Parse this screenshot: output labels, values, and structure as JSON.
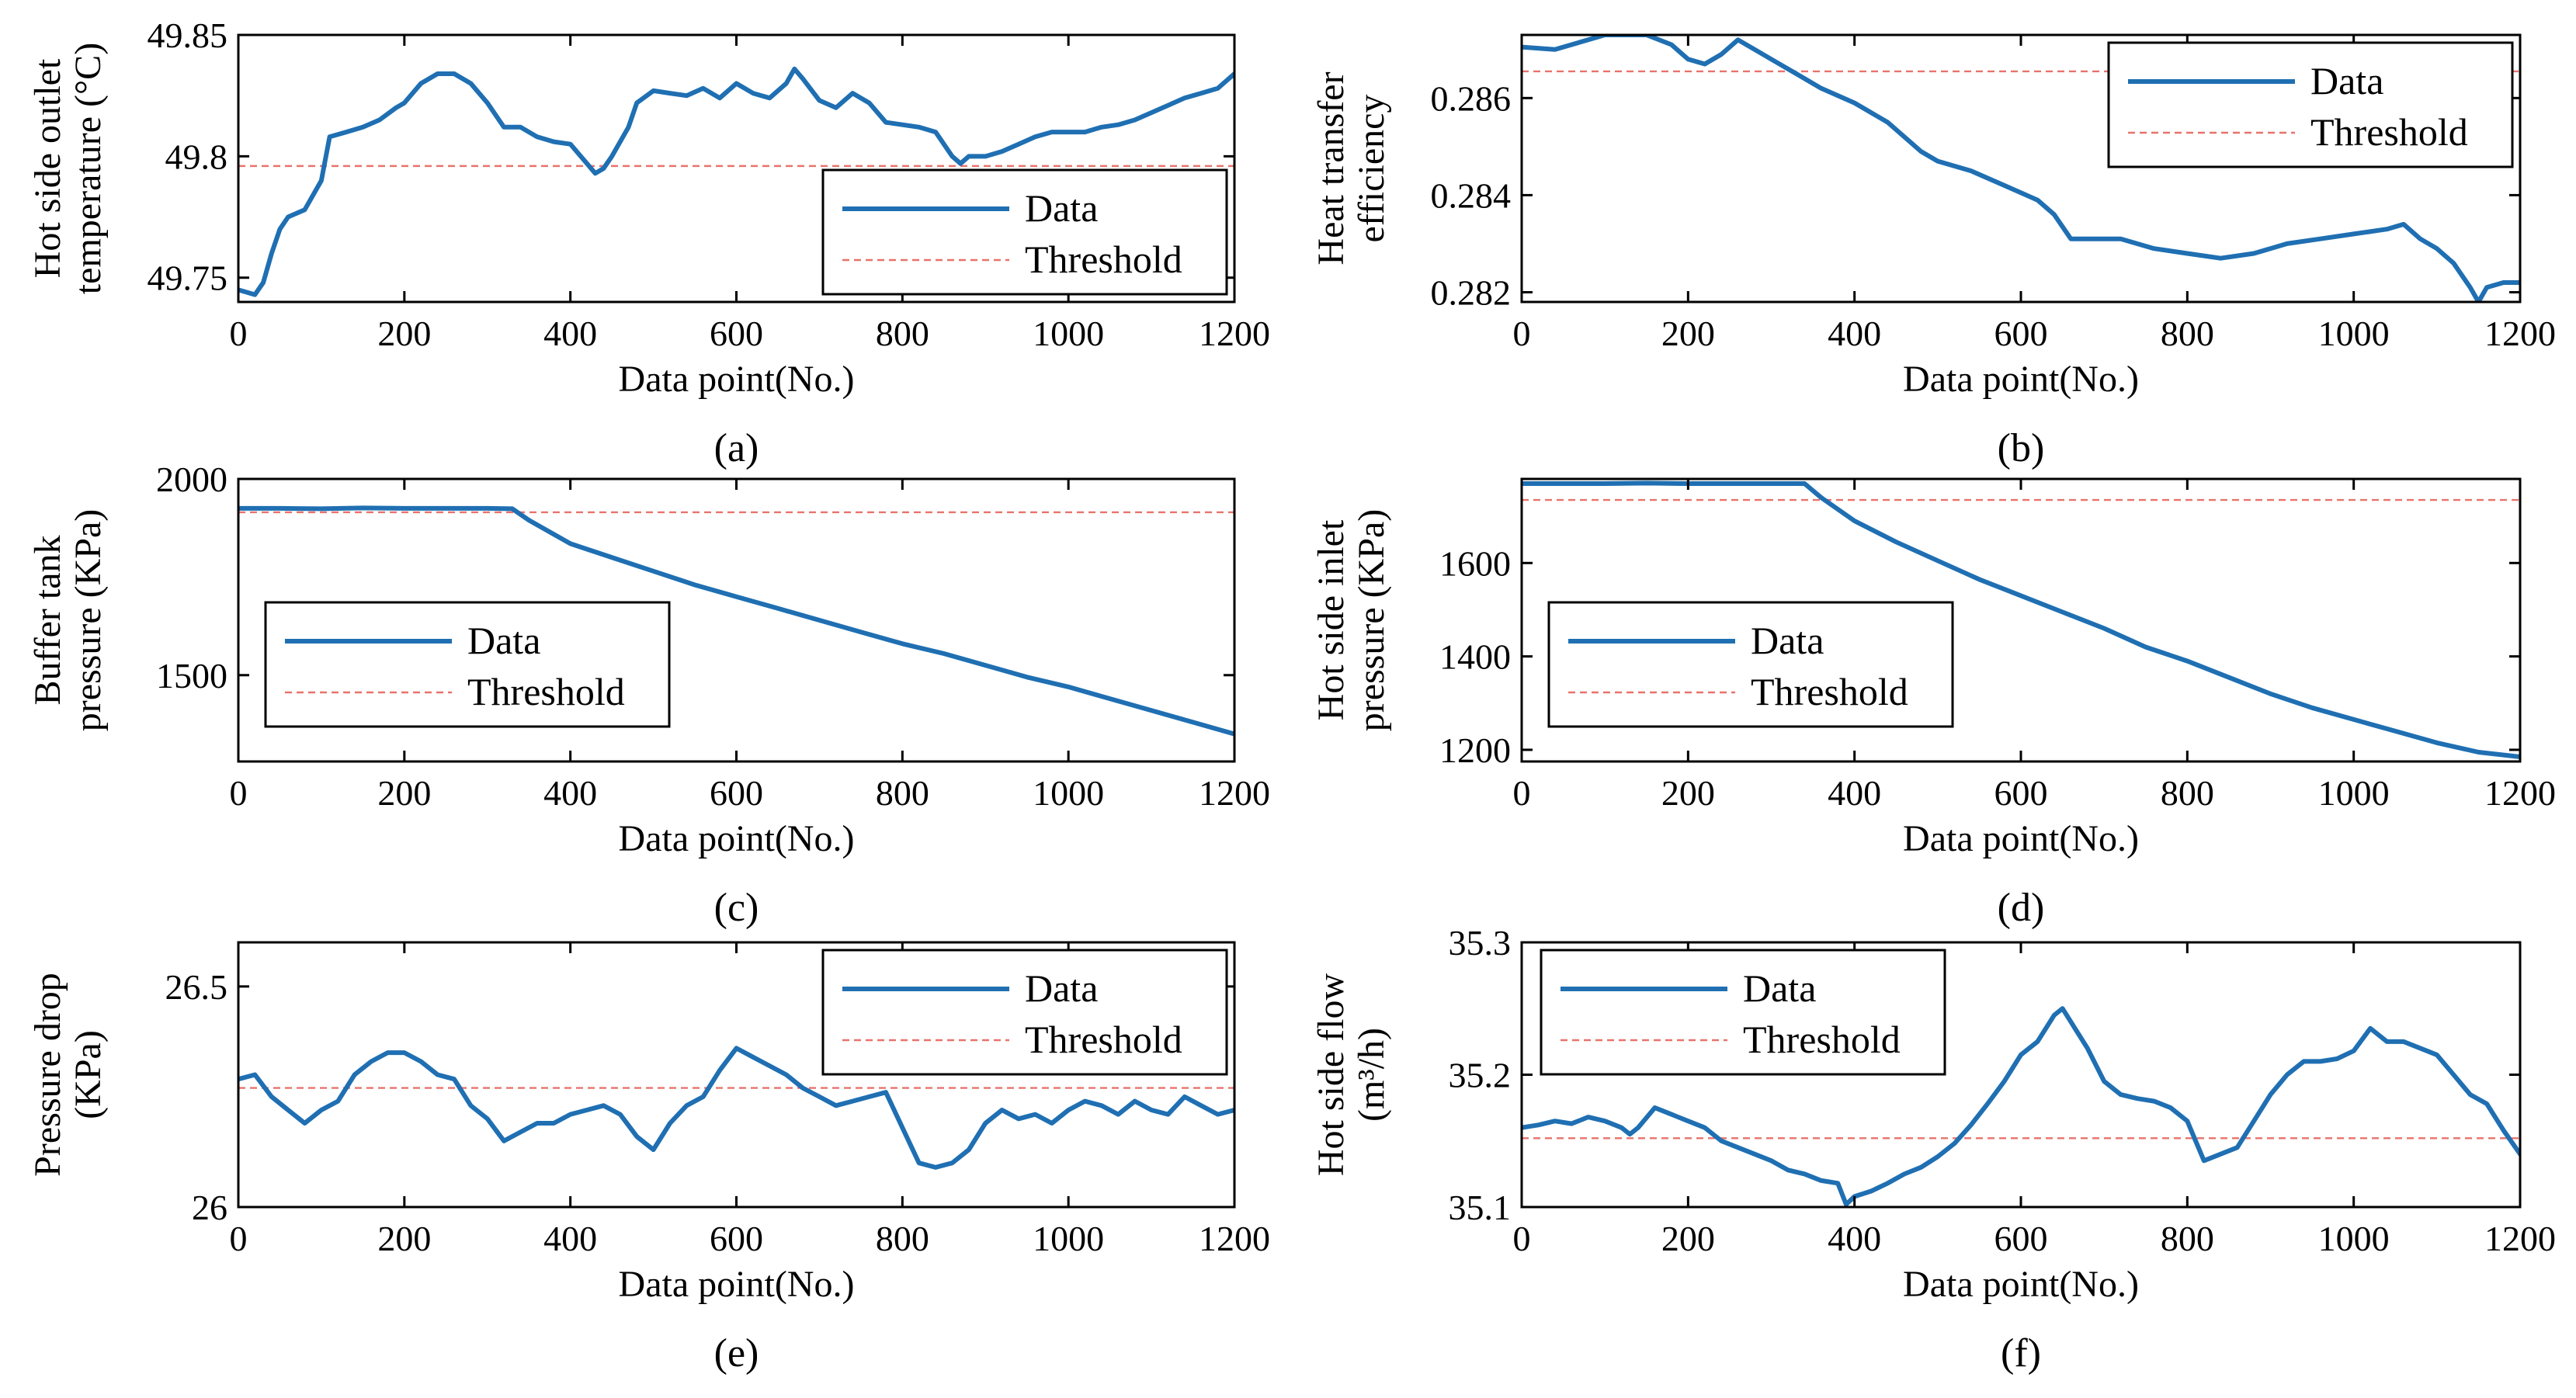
{
  "colors": {
    "data": "#1f6fb2",
    "threshold": "#e8736c",
    "axis": "#000000"
  },
  "chart_data": [
    {
      "type": "line",
      "panel_label": "(a)",
      "xlabel": "Data point(No.)",
      "ylabel_lines": [
        "Hot side outlet",
        "temperature (°C)"
      ],
      "xlim": [
        0,
        1200
      ],
      "ylim": [
        49.74,
        49.85
      ],
      "xticks": [
        0,
        200,
        400,
        600,
        800,
        1000,
        1200
      ],
      "xtick_labels": [
        "0",
        "200",
        "400",
        "600",
        "800",
        "1000",
        "1200"
      ],
      "yticks": [
        49.75,
        49.8,
        49.85
      ],
      "ytick_labels": [
        "49.75",
        "49.8",
        "49.85"
      ],
      "legend_position": "lower-right",
      "threshold": 49.796,
      "series": [
        {
          "name": "Data",
          "x": [
            0,
            20,
            30,
            40,
            50,
            60,
            80,
            100,
            110,
            130,
            150,
            170,
            190,
            200,
            220,
            240,
            260,
            280,
            300,
            320,
            340,
            360,
            380,
            400,
            420,
            430,
            440,
            450,
            470,
            480,
            500,
            520,
            540,
            560,
            580,
            600,
            620,
            640,
            660,
            670,
            680,
            700,
            720,
            740,
            760,
            780,
            800,
            820,
            840,
            860,
            870,
            880,
            900,
            920,
            940,
            960,
            980,
            1000,
            1020,
            1040,
            1060,
            1080,
            1100,
            1120,
            1140,
            1160,
            1180,
            1200
          ],
          "y": [
            49.745,
            49.743,
            49.748,
            49.76,
            49.77,
            49.775,
            49.778,
            49.79,
            49.808,
            49.81,
            49.812,
            49.815,
            49.82,
            49.822,
            49.83,
            49.834,
            49.834,
            49.83,
            49.822,
            49.812,
            49.812,
            49.808,
            49.806,
            49.805,
            49.797,
            49.793,
            49.795,
            49.8,
            49.812,
            49.822,
            49.827,
            49.826,
            49.825,
            49.828,
            49.824,
            49.83,
            49.826,
            49.824,
            49.83,
            49.836,
            49.832,
            49.823,
            49.82,
            49.826,
            49.822,
            49.814,
            49.813,
            49.812,
            49.81,
            49.8,
            49.797,
            49.8,
            49.8,
            49.802,
            49.805,
            49.808,
            49.81,
            49.81,
            49.81,
            49.812,
            49.813,
            49.815,
            49.818,
            49.821,
            49.824,
            49.826,
            49.828,
            49.834
          ]
        },
        {
          "name": "Threshold"
        }
      ]
    },
    {
      "type": "line",
      "panel_label": "(b)",
      "xlabel": "Data point(No.)",
      "ylabel_lines": [
        "Heat transfer",
        "efficiency"
      ],
      "xlim": [
        0,
        1200
      ],
      "ylim": [
        0.2818,
        0.2873
      ],
      "xticks": [
        0,
        200,
        400,
        600,
        800,
        1000,
        1200
      ],
      "xtick_labels": [
        "0",
        "200",
        "400",
        "600",
        "800",
        "1000",
        "1200"
      ],
      "yticks": [
        0.282,
        0.284,
        0.286
      ],
      "ytick_labels": [
        "0.282",
        "0.284",
        "0.286"
      ],
      "legend_position": "top-right",
      "threshold": 0.28655,
      "series": [
        {
          "name": "Data",
          "x": [
            0,
            40,
            80,
            100,
            150,
            180,
            200,
            220,
            240,
            260,
            280,
            300,
            330,
            360,
            400,
            440,
            480,
            500,
            540,
            580,
            620,
            640,
            660,
            680,
            720,
            760,
            800,
            840,
            880,
            920,
            960,
            1000,
            1040,
            1060,
            1080,
            1100,
            1120,
            1140,
            1150,
            1160,
            1180,
            1200
          ],
          "y": [
            0.28705,
            0.287,
            0.2872,
            0.2873,
            0.2873,
            0.2871,
            0.2868,
            0.2867,
            0.2869,
            0.2872,
            0.287,
            0.2868,
            0.2865,
            0.2862,
            0.2859,
            0.2855,
            0.2849,
            0.2847,
            0.2845,
            0.2842,
            0.2839,
            0.2836,
            0.2831,
            0.2831,
            0.2831,
            0.2829,
            0.2828,
            0.2827,
            0.2828,
            0.283,
            0.2831,
            0.2832,
            0.2833,
            0.2834,
            0.2831,
            0.2829,
            0.2826,
            0.2821,
            0.2818,
            0.2821,
            0.2822,
            0.2822
          ]
        },
        {
          "name": "Threshold"
        }
      ]
    },
    {
      "type": "line",
      "panel_label": "(c)",
      "xlabel": "Data point(No.)",
      "ylabel_lines": [
        "Buffer tank",
        "pressure (KPa)"
      ],
      "xlim": [
        0,
        1200
      ],
      "ylim": [
        1280,
        2000
      ],
      "xticks": [
        0,
        200,
        400,
        600,
        800,
        1000,
        1200
      ],
      "xtick_labels": [
        "0",
        "200",
        "400",
        "600",
        "800",
        "1000",
        "1200"
      ],
      "yticks": [
        1500,
        2000
      ],
      "ytick_labels": [
        "1500",
        "2000"
      ],
      "legend_position": "lower-left",
      "threshold": 1915,
      "series": [
        {
          "name": "Data",
          "x": [
            0,
            50,
            100,
            150,
            200,
            250,
            300,
            330,
            350,
            400,
            450,
            500,
            550,
            600,
            650,
            700,
            750,
            800,
            850,
            900,
            950,
            1000,
            1050,
            1100,
            1150,
            1200
          ],
          "y": [
            1925,
            1925,
            1924,
            1926,
            1925,
            1925,
            1925,
            1924,
            1895,
            1835,
            1800,
            1765,
            1730,
            1700,
            1670,
            1640,
            1610,
            1580,
            1555,
            1525,
            1495,
            1470,
            1440,
            1410,
            1380,
            1350
          ]
        },
        {
          "name": "Threshold"
        }
      ]
    },
    {
      "type": "line",
      "panel_label": "(d)",
      "xlabel": "Data point(No.)",
      "ylabel_lines": [
        "Hot side inlet",
        "pressure (KPa)"
      ],
      "xlim": [
        0,
        1200
      ],
      "ylim": [
        1175,
        1780
      ],
      "xticks": [
        0,
        200,
        400,
        600,
        800,
        1000,
        1200
      ],
      "xtick_labels": [
        "0",
        "200",
        "400",
        "600",
        "800",
        "1000",
        "1200"
      ],
      "yticks": [
        1200,
        1400,
        1600
      ],
      "ytick_labels": [
        "1200",
        "1400",
        "1600"
      ],
      "legend_position": "lower-left",
      "threshold": 1735,
      "series": [
        {
          "name": "Data",
          "x": [
            0,
            50,
            100,
            150,
            200,
            250,
            300,
            340,
            360,
            400,
            450,
            500,
            550,
            600,
            650,
            700,
            750,
            800,
            850,
            900,
            950,
            1000,
            1050,
            1100,
            1150,
            1200
          ],
          "y": [
            1770,
            1770,
            1770,
            1771,
            1770,
            1770,
            1770,
            1770,
            1740,
            1690,
            1645,
            1605,
            1565,
            1530,
            1495,
            1460,
            1420,
            1390,
            1355,
            1320,
            1290,
            1265,
            1240,
            1215,
            1195,
            1185
          ]
        },
        {
          "name": "Threshold"
        }
      ]
    },
    {
      "type": "line",
      "panel_label": "(e)",
      "xlabel": "Data point(No.)",
      "ylabel_lines": [
        "Pressure drop",
        "(KPa)"
      ],
      "xlim": [
        0,
        1200
      ],
      "ylim": [
        26,
        26.6
      ],
      "xticks": [
        0,
        200,
        400,
        600,
        800,
        1000,
        1200
      ],
      "xtick_labels": [
        "0",
        "200",
        "400",
        "600",
        "800",
        "1000",
        "1200"
      ],
      "yticks": [
        26,
        26.5
      ],
      "ytick_labels": [
        "26",
        "26.5"
      ],
      "legend_position": "top-right",
      "threshold": 26.27,
      "series": [
        {
          "name": "Data",
          "x": [
            0,
            20,
            40,
            60,
            80,
            100,
            120,
            140,
            160,
            180,
            200,
            220,
            240,
            260,
            280,
            300,
            320,
            340,
            360,
            380,
            400,
            420,
            440,
            460,
            480,
            500,
            520,
            540,
            560,
            580,
            600,
            620,
            640,
            660,
            680,
            700,
            720,
            740,
            760,
            780,
            800,
            820,
            840,
            860,
            880,
            900,
            920,
            940,
            960,
            980,
            1000,
            1020,
            1040,
            1060,
            1080,
            1100,
            1120,
            1140,
            1160,
            1180,
            1200
          ],
          "y": [
            26.29,
            26.3,
            26.25,
            26.22,
            26.19,
            26.22,
            26.24,
            26.3,
            26.33,
            26.35,
            26.35,
            26.33,
            26.3,
            26.29,
            26.23,
            26.2,
            26.15,
            26.17,
            26.19,
            26.19,
            26.21,
            26.22,
            26.23,
            26.21,
            26.16,
            26.13,
            26.19,
            26.23,
            26.25,
            26.31,
            26.36,
            26.34,
            26.32,
            26.3,
            26.27,
            26.25,
            26.23,
            26.24,
            26.25,
            26.26,
            26.18,
            26.1,
            26.09,
            26.1,
            26.13,
            26.19,
            26.22,
            26.2,
            26.21,
            26.19,
            26.22,
            26.24,
            26.23,
            26.21,
            26.24,
            26.22,
            26.21,
            26.25,
            26.23,
            26.21,
            26.22
          ]
        },
        {
          "name": "Threshold"
        }
      ]
    },
    {
      "type": "line",
      "panel_label": "(f)",
      "xlabel": "Data point(No.)",
      "ylabel_lines": [
        "Hot side flow",
        "(m³/h)"
      ],
      "xlim": [
        0,
        1200
      ],
      "ylim": [
        35.1,
        35.3
      ],
      "xticks": [
        0,
        200,
        400,
        600,
        800,
        1000,
        1200
      ],
      "xtick_labels": [
        "0",
        "200",
        "400",
        "600",
        "800",
        "1000",
        "1200"
      ],
      "yticks": [
        35.1,
        35.2,
        35.3
      ],
      "ytick_labels": [
        "35.1",
        "35.2",
        "35.3"
      ],
      "legend_position": "top-left",
      "threshold": 35.152,
      "series": [
        {
          "name": "Data",
          "x": [
            0,
            20,
            40,
            60,
            80,
            100,
            120,
            130,
            140,
            160,
            180,
            200,
            220,
            240,
            260,
            280,
            300,
            320,
            340,
            360,
            380,
            390,
            400,
            420,
            440,
            460,
            480,
            500,
            520,
            540,
            560,
            580,
            600,
            620,
            640,
            650,
            660,
            680,
            700,
            720,
            740,
            760,
            780,
            800,
            820,
            840,
            860,
            880,
            900,
            920,
            940,
            960,
            980,
            1000,
            1020,
            1040,
            1060,
            1080,
            1100,
            1120,
            1140,
            1160,
            1180,
            1200
          ],
          "y": [
            35.16,
            35.162,
            35.165,
            35.163,
            35.168,
            35.165,
            35.16,
            35.155,
            35.16,
            35.175,
            35.17,
            35.165,
            35.16,
            35.15,
            35.145,
            35.14,
            35.135,
            35.128,
            35.125,
            35.12,
            35.118,
            35.102,
            35.108,
            35.112,
            35.118,
            35.125,
            35.13,
            35.138,
            35.148,
            35.162,
            35.178,
            35.195,
            35.215,
            35.225,
            35.245,
            35.25,
            35.24,
            35.22,
            35.195,
            35.185,
            35.182,
            35.18,
            35.175,
            35.165,
            35.135,
            35.14,
            35.145,
            35.165,
            35.185,
            35.2,
            35.21,
            35.21,
            35.212,
            35.218,
            35.235,
            35.225,
            35.225,
            35.22,
            35.215,
            35.2,
            35.185,
            35.178,
            35.158,
            35.14
          ]
        },
        {
          "name": "Threshold"
        }
      ]
    }
  ]
}
